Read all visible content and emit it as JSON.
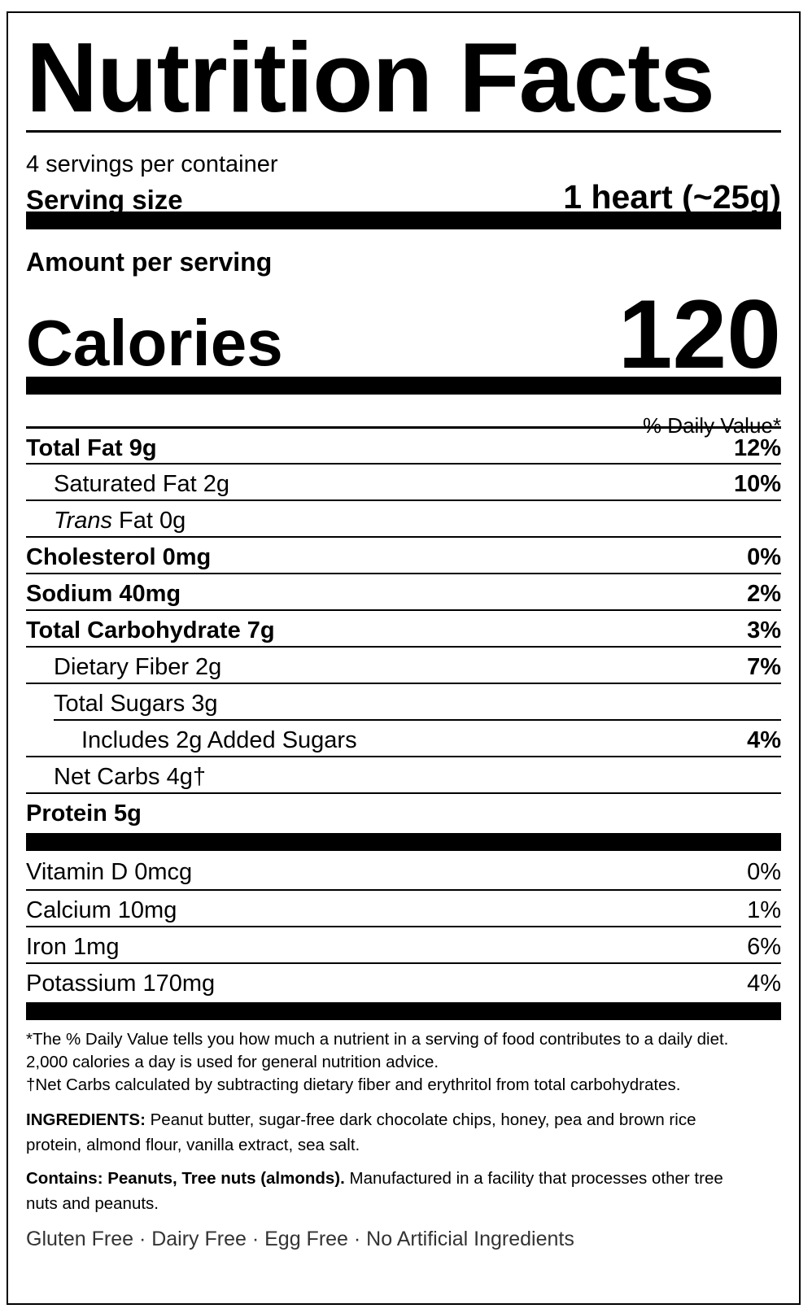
{
  "title": "Nutrition Facts",
  "servings_per_container": "4 servings per container",
  "serving_size_label": "Serving size",
  "serving_size_value": "1 heart (~25g)",
  "amount_per_serving": "Amount per serving",
  "calories_label": "Calories",
  "calories_value": "120",
  "daily_value_header": "% Daily Value*",
  "nutrients": [
    {
      "name": "Total Fat 9g",
      "dv": "12%"
    },
    {
      "name": "Saturated Fat 2g",
      "dv": "10%"
    },
    {
      "name_italic": "Trans",
      "name": " Fat 0g",
      "dv": ""
    },
    {
      "name": "Cholesterol 0mg",
      "dv": "0%"
    },
    {
      "name": "Sodium 40mg",
      "dv": "2%"
    },
    {
      "name": "Total Carbohydrate 7g",
      "dv": "3%"
    },
    {
      "name": "Dietary Fiber 2g",
      "dv": "7%"
    },
    {
      "name": "Total Sugars 3g",
      "dv": ""
    },
    {
      "name": "Includes 2g Added Sugars",
      "dv": "4%"
    },
    {
      "name": "Net Carbs 4g†",
      "dv": ""
    },
    {
      "name": "Protein 5g",
      "dv": ""
    }
  ],
  "vitamins": [
    {
      "name": "Vitamin D 0mcg",
      "dv": "0%"
    },
    {
      "name": "Calcium 10mg",
      "dv": "1%"
    },
    {
      "name": "Iron 1mg",
      "dv": "6%"
    },
    {
      "name": "Potassium 170mg",
      "dv": "4%"
    }
  ],
  "footnote_dv_line1": "*The % Daily Value tells you how much a nutrient in a serving of food contributes to a daily diet.",
  "footnote_dv_line2": "2,000 calories a day is used for general nutrition advice.",
  "footnote_net_carbs": "†Net Carbs calculated by subtracting dietary fiber and erythritol from total carbohydrates.",
  "ingredients_label": "INGREDIENTS:",
  "ingredients_line1": " Peanut butter, sugar-free dark chocolate chips, honey, pea and brown rice",
  "ingredients_line2": "protein, almond flour, vanilla extract, sea salt.",
  "contains_label": "Contains: Peanuts, Tree nuts (almonds).",
  "contains_line1": " Manufactured in a facility that processes other tree",
  "contains_line2": "nuts and peanuts.",
  "free_from": "Gluten Free · Dairy Free · Egg Free · No Artificial Ingredients"
}
